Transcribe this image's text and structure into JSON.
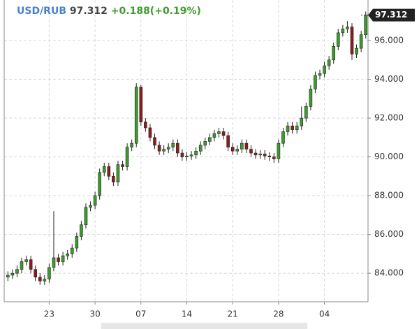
{
  "chart_data": {
    "type": "candlestick",
    "title": "USD/RUB",
    "change": "+0.188(+0.19%)",
    "categories": [
      null,
      null,
      null,
      null,
      null,
      null,
      null,
      null,
      null,
      "23",
      null,
      null,
      null,
      null,
      null,
      null,
      null,
      null,
      null,
      "30",
      null,
      null,
      null,
      null,
      null,
      null,
      null,
      null,
      null,
      "07",
      null,
      null,
      null,
      null,
      null,
      null,
      null,
      null,
      null,
      "14",
      null,
      null,
      null,
      null,
      null,
      null,
      null,
      null,
      null,
      "21",
      null,
      null,
      null,
      null,
      null,
      null,
      null,
      null,
      null,
      "28",
      null,
      null,
      null,
      null,
      null,
      null,
      null,
      null,
      null,
      "04",
      null,
      null,
      null,
      null,
      null,
      null,
      null,
      null,
      null
    ],
    "open": [
      83.8,
      83.9,
      84.0,
      84.2,
      84.6,
      84.7,
      84.2,
      83.8,
      83.6,
      83.7,
      84.3,
      84.8,
      84.6,
      84.9,
      85.0,
      85.3,
      85.9,
      86.5,
      87.4,
      87.5,
      88.0,
      89.2,
      89.5,
      89.0,
      88.7,
      89.6,
      89.5,
      90.5,
      90.7,
      93.6,
      91.8,
      91.5,
      91.0,
      90.6,
      90.3,
      90.4,
      90.5,
      90.7,
      90.2,
      90.0,
      90.05,
      90.1,
      90.3,
      90.6,
      90.8,
      91.0,
      91.2,
      91.3,
      91.1,
      90.5,
      90.3,
      90.4,
      90.7,
      90.4,
      90.2,
      90.1,
      90.15,
      90.05,
      90.0,
      89.9,
      90.7,
      91.3,
      91.6,
      91.4,
      91.6,
      92.0,
      92.6,
      93.5,
      94.2,
      94.3,
      94.7,
      95.0,
      95.7,
      96.4,
      96.6,
      96.7,
      95.3,
      95.6,
      96.3
    ],
    "high": [
      84.1,
      84.2,
      84.4,
      84.8,
      84.9,
      84.9,
      84.4,
      84.0,
      83.9,
      84.5,
      87.2,
      85.0,
      85.1,
      85.2,
      85.5,
      86.1,
      86.7,
      87.6,
      87.7,
      88.2,
      89.4,
      89.7,
      89.7,
      89.2,
      89.8,
      89.8,
      90.7,
      90.9,
      93.8,
      93.7,
      92.0,
      91.7,
      91.2,
      90.8,
      90.6,
      90.7,
      90.9,
      90.9,
      90.4,
      90.25,
      90.3,
      90.5,
      90.8,
      91.0,
      91.2,
      91.4,
      91.5,
      91.5,
      91.3,
      90.7,
      90.6,
      90.9,
      90.9,
      90.6,
      90.4,
      90.35,
      90.35,
      90.25,
      90.2,
      90.9,
      91.5,
      91.8,
      91.8,
      91.8,
      92.6,
      92.8,
      93.7,
      94.4,
      94.5,
      94.9,
      95.2,
      95.9,
      96.6,
      96.8,
      97.0,
      96.9,
      95.8,
      96.5,
      97.5
    ],
    "low": [
      83.6,
      83.7,
      83.8,
      84.0,
      84.4,
      84.0,
      83.6,
      83.4,
      83.4,
      83.5,
      84.1,
      84.4,
      84.4,
      84.7,
      84.8,
      85.1,
      85.7,
      86.3,
      87.2,
      87.3,
      87.8,
      89.0,
      88.8,
      88.5,
      88.5,
      89.3,
      89.3,
      90.3,
      90.5,
      91.6,
      91.3,
      90.8,
      90.4,
      90.1,
      90.1,
      90.2,
      90.3,
      90.0,
      89.8,
      89.8,
      89.85,
      89.9,
      90.1,
      90.4,
      90.6,
      90.8,
      91.0,
      90.9,
      90.3,
      90.1,
      90.1,
      90.2,
      90.2,
      90.0,
      89.9,
      89.9,
      89.85,
      89.8,
      89.7,
      89.7,
      90.5,
      91.1,
      91.2,
      91.2,
      91.4,
      91.8,
      92.4,
      93.3,
      94.0,
      94.1,
      94.5,
      94.8,
      95.5,
      96.2,
      96.4,
      95.0,
      95.1,
      95.4,
      96.1
    ],
    "close": [
      83.9,
      84.0,
      84.2,
      84.6,
      84.7,
      84.2,
      83.8,
      83.6,
      83.7,
      84.3,
      84.8,
      84.6,
      84.9,
      85.0,
      85.3,
      85.9,
      86.5,
      87.4,
      87.5,
      88.0,
      89.2,
      89.5,
      89.0,
      88.7,
      89.6,
      89.5,
      90.5,
      90.7,
      93.6,
      91.8,
      91.5,
      91.0,
      90.6,
      90.3,
      90.4,
      90.5,
      90.7,
      90.2,
      90.0,
      90.05,
      90.1,
      90.3,
      90.6,
      90.8,
      91.0,
      91.2,
      91.3,
      91.1,
      90.5,
      90.3,
      90.4,
      90.7,
      90.4,
      90.2,
      90.1,
      90.15,
      90.05,
      90.0,
      89.9,
      90.7,
      91.3,
      91.6,
      91.4,
      91.6,
      92.0,
      92.6,
      93.5,
      94.2,
      94.3,
      94.7,
      95.0,
      95.7,
      96.4,
      96.6,
      96.7,
      95.3,
      95.6,
      96.3,
      97.312
    ],
    "up_color": "#3c9c2c",
    "down_color": "#8e1c1c",
    "title_color": "#4a7fd0",
    "change_color": "#3c9c2c",
    "ylim": [
      82.53,
      98.09
    ],
    "yticks": [
      {
        "value": 84,
        "label": "84.000"
      },
      {
        "value": 86,
        "label": "86.000"
      },
      {
        "value": 88,
        "label": "88.000"
      },
      {
        "value": 90,
        "label": "90.000"
      },
      {
        "value": 92,
        "label": "92.000"
      },
      {
        "value": 94,
        "label": "94.000"
      },
      {
        "value": 96,
        "label": "96.000"
      }
    ],
    "grid": true
  }
}
